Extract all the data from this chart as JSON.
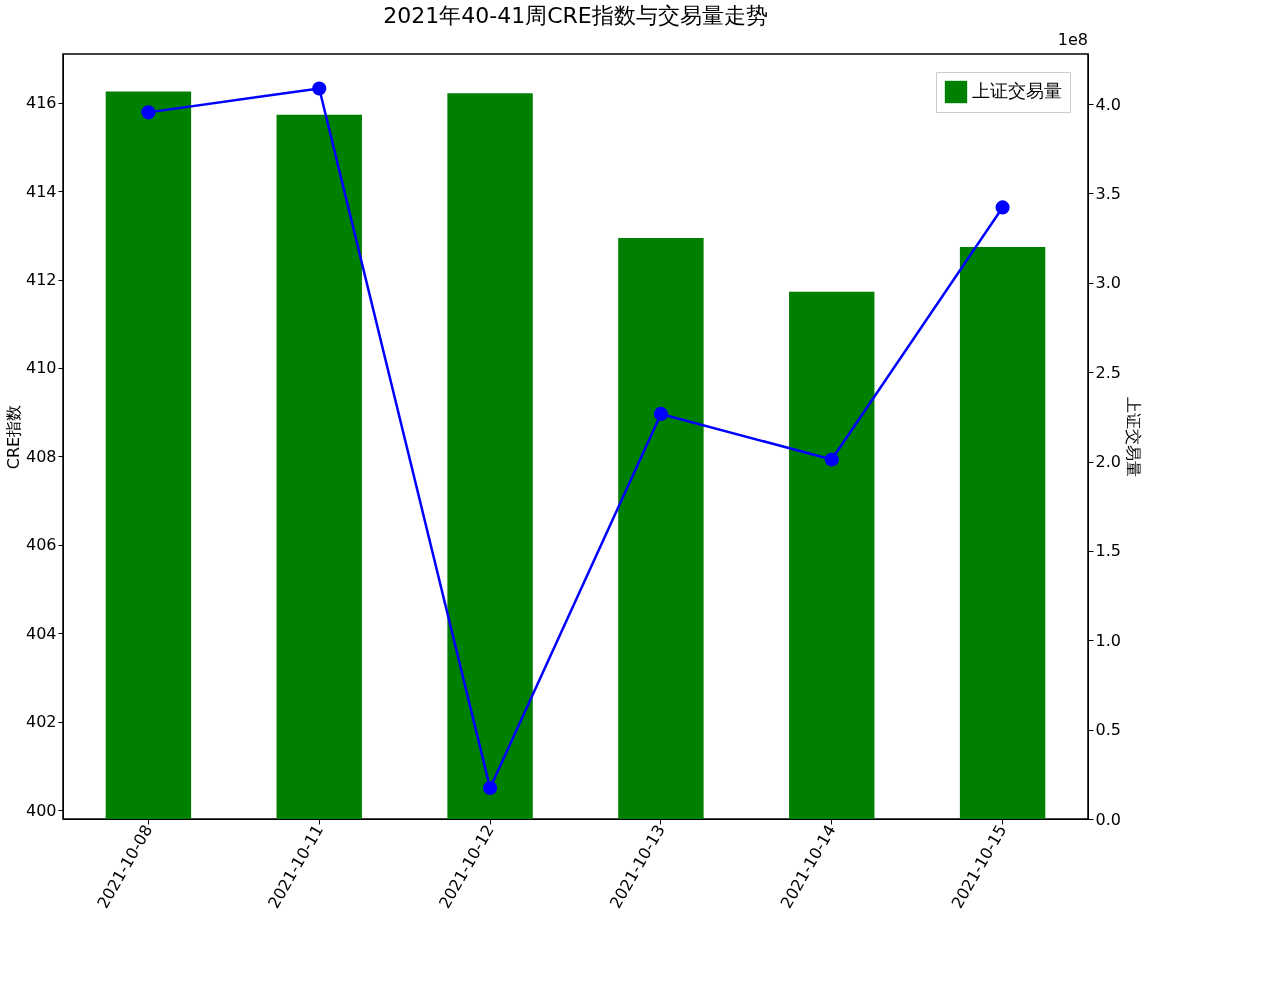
{
  "chart_data": {
    "type": "bar",
    "title": "2021年40-41周CRE指数与交易量走势",
    "categories": [
      "2021-10-08",
      "2021-10-11",
      "2021-10-12",
      "2021-10-13",
      "2021-10-14",
      "2021-10-15"
    ],
    "series": [
      {
        "type": "line",
        "color": "#0000ff",
        "marker": "circle",
        "line_style": "solid",
        "values": [
          415.78,
          416.32,
          400.5,
          408.96,
          407.93,
          413.63
        ]
      },
      {
        "name": "上证交易量",
        "color": "#008000",
        "axis": "y2",
        "values": [
          4.07,
          3.94,
          4.06,
          3.25,
          2.95,
          3.2
        ]
      }
    ],
    "ylabel": "CRE指数",
    "y2label": "上证交易量",
    "ylim": [
      399.8,
      417.1
    ],
    "yticks": [
      400,
      402,
      404,
      406,
      408,
      410,
      412,
      414,
      416
    ],
    "y2lim": [
      0,
      4.28
    ],
    "y2ticks": [
      {
        "value": 0,
        "label": "0.0"
      },
      0.5,
      {
        "value": 1,
        "label": "1.0"
      },
      1.5,
      {
        "value": 2,
        "label": "2.0"
      },
      2.5,
      {
        "value": 3,
        "label": "3.0"
      },
      3.5,
      {
        "value": 4,
        "label": "4.0"
      }
    ],
    "annotations": [
      "1e8"
    ],
    "legend": "top right",
    "grid": false
  }
}
